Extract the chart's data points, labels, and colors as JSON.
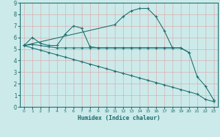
{
  "title": "",
  "xlabel": "Humidex (Indice chaleur)",
  "bg_color": "#cceaea",
  "grid_color": "#bbdddd",
  "line_color": "#1a6b6b",
  "xlim": [
    -0.5,
    23.5
  ],
  "ylim": [
    0,
    9
  ],
  "xticks": [
    0,
    1,
    2,
    3,
    4,
    5,
    6,
    7,
    8,
    9,
    10,
    11,
    12,
    13,
    14,
    15,
    16,
    17,
    18,
    19,
    20,
    21,
    22,
    23
  ],
  "yticks": [
    0,
    1,
    2,
    3,
    4,
    5,
    6,
    7,
    8,
    9
  ],
  "series": [
    {
      "x": [
        0,
        1,
        2,
        3,
        4,
        5,
        6,
        7,
        8,
        9,
        10,
        11,
        12,
        13,
        14,
        15,
        16,
        17,
        18,
        19,
        20
      ],
      "y": [
        5.3,
        6.0,
        5.5,
        5.3,
        5.3,
        6.3,
        7.0,
        6.8,
        5.2,
        5.1,
        5.1,
        5.1,
        5.1,
        5.1,
        5.1,
        5.1,
        5.1,
        5.1,
        5.1,
        5.1,
        4.7
      ]
    },
    {
      "x": [
        0,
        11,
        12,
        13,
        14,
        15,
        16,
        17,
        18
      ],
      "y": [
        5.3,
        7.1,
        7.8,
        8.3,
        8.5,
        8.5,
        7.8,
        6.6,
        5.1
      ]
    },
    {
      "x": [
        0,
        1,
        2,
        3,
        4,
        5,
        6,
        7,
        8,
        9,
        10,
        11,
        12,
        13,
        14,
        15,
        16,
        17,
        18,
        19,
        20,
        21,
        22,
        23
      ],
      "y": [
        5.3,
        5.1,
        4.9,
        4.7,
        4.5,
        4.3,
        4.1,
        3.9,
        3.7,
        3.5,
        3.3,
        3.1,
        2.9,
        2.7,
        2.5,
        2.3,
        2.1,
        1.9,
        1.7,
        1.5,
        1.3,
        1.1,
        0.65,
        0.45
      ]
    },
    {
      "x": [
        0,
        1,
        2,
        3,
        4,
        5,
        6,
        7,
        8,
        9,
        10,
        11,
        12,
        13,
        14,
        15,
        16,
        17,
        18,
        19,
        20,
        21,
        22,
        23
      ],
      "y": [
        5.3,
        5.4,
        5.3,
        5.2,
        5.1,
        5.1,
        5.1,
        5.1,
        5.1,
        5.1,
        5.1,
        5.1,
        5.1,
        5.1,
        5.1,
        5.1,
        5.1,
        5.1,
        5.1,
        5.1,
        4.7,
        2.6,
        1.8,
        0.6
      ]
    }
  ]
}
